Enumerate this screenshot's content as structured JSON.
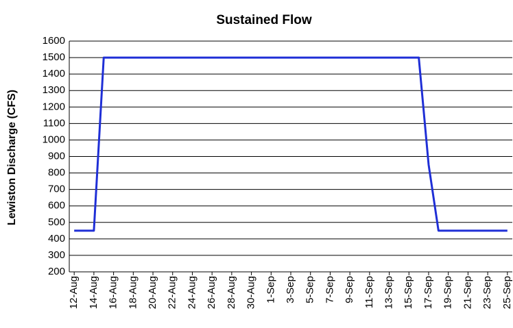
{
  "chart_data": {
    "type": "line",
    "title": "Sustained Flow",
    "y_label": "Lewiston Discharge (CFS)",
    "categories": [
      "12-Aug",
      null,
      "14-Aug",
      null,
      "16-Aug",
      null,
      "18-Aug",
      null,
      "20-Aug",
      null,
      "22-Aug",
      null,
      "24-Aug",
      null,
      "26-Aug",
      null,
      "28-Aug",
      null,
      "30-Aug",
      null,
      "1-Sep",
      null,
      "3-Sep",
      null,
      "5-Sep",
      null,
      "7-Sep",
      null,
      "9-Sep",
      null,
      "11-Sep",
      null,
      "13-Sep",
      null,
      "15-Sep",
      null,
      "17-Sep",
      null,
      "19-Sep",
      null,
      "21-Sep",
      null,
      "23-Sep",
      null,
      "25-Sep"
    ],
    "values": [
      450,
      450,
      450,
      1500,
      1500,
      1500,
      1500,
      1500,
      1500,
      1500,
      1500,
      1500,
      1500,
      1500,
      1500,
      1500,
      1500,
      1500,
      1500,
      1500,
      1500,
      1500,
      1500,
      1500,
      1500,
      1500,
      1500,
      1500,
      1500,
      1500,
      1500,
      1500,
      1500,
      1500,
      1500,
      1500,
      850,
      450,
      450,
      450,
      450,
      450,
      450,
      450,
      450
    ],
    "color": "#1f2fd6",
    "ylim": [
      200,
      1600
    ],
    "yticks": [
      200,
      300,
      400,
      500,
      600,
      700,
      800,
      900,
      1000,
      1100,
      1200,
      1300,
      1400,
      1500,
      1600
    ],
    "grid": true
  }
}
